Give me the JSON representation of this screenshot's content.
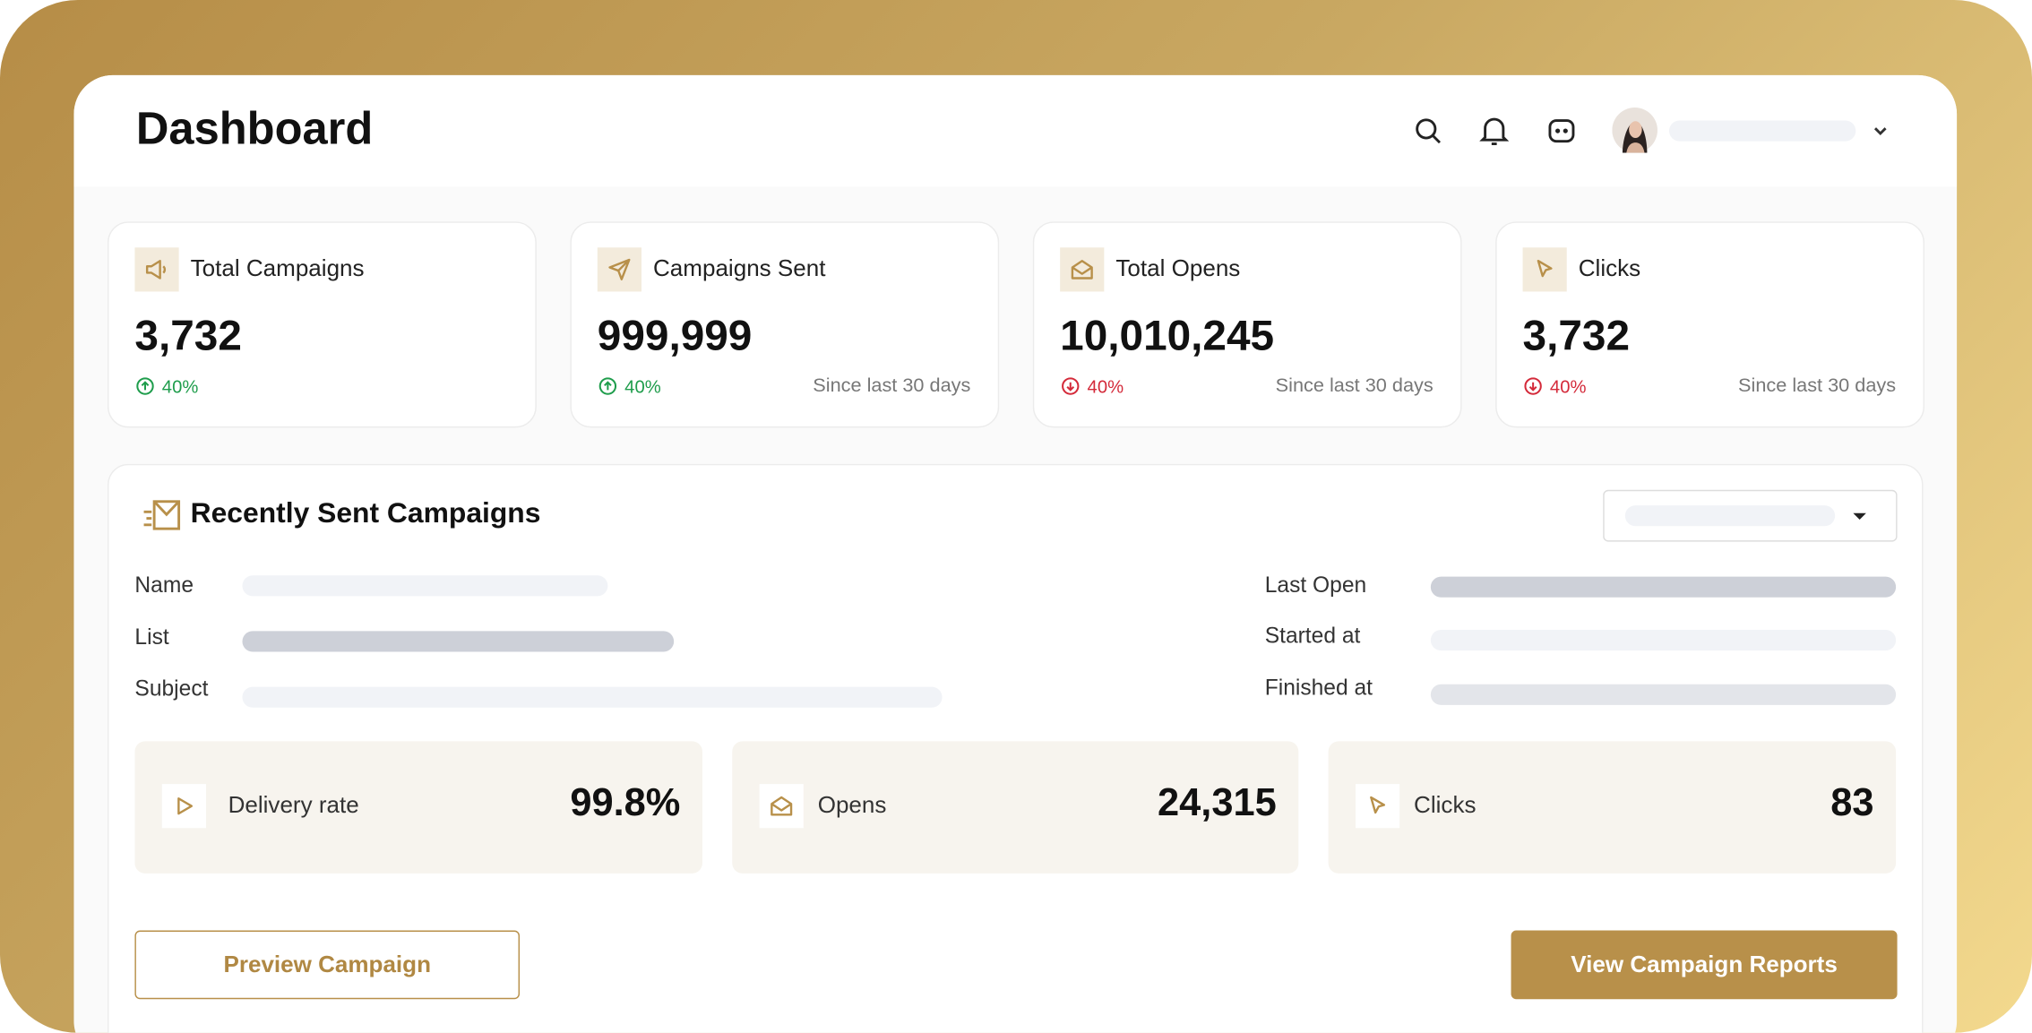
{
  "header": {
    "title": "Dashboard"
  },
  "stats": [
    {
      "label": "Total Campaigns",
      "value": "3,732",
      "change": "40%",
      "trend": "up"
    },
    {
      "label": "Campaigns Sent",
      "value": "999,999",
      "change": "40%",
      "trend": "up",
      "period": "Since last 30 days"
    },
    {
      "label": "Total Opens",
      "value": "10,010,245",
      "change": "40%",
      "trend": "down",
      "period": "Since last 30 days"
    },
    {
      "label": "Clicks",
      "value": "3,732",
      "change": "40%",
      "trend": "down",
      "period": "Since last 30 days"
    }
  ],
  "recent": {
    "title": "Recently Sent Campaigns",
    "fields_left": [
      "Name",
      "List",
      "Subject"
    ],
    "fields_right": [
      "Last Open",
      "Started at",
      "Finished at"
    ],
    "metrics": [
      {
        "label": "Delivery rate",
        "value": "99.8%"
      },
      {
        "label": "Opens",
        "value": "24,315"
      },
      {
        "label": "Clicks",
        "value": "83"
      }
    ],
    "buttons": {
      "preview": "Preview Campaign",
      "reports": "View Campaign Reports"
    }
  }
}
